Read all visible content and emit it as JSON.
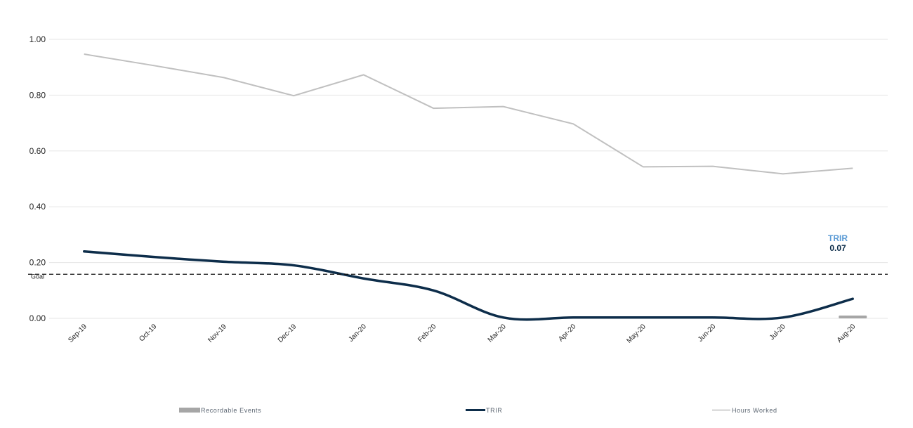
{
  "chart_data": {
    "type": "line",
    "categories": [
      "Sep-19",
      "Oct-19",
      "Nov-19",
      "Dec-19",
      "Jan-20",
      "Feb-20",
      "Mar-20",
      "Apr-20",
      "May-20",
      "Jun-20",
      "Jul-20",
      "Aug-20"
    ],
    "ylim": [
      0,
      1
    ],
    "y_ticks": [
      "0.00",
      "0.20",
      "0.40",
      "0.60",
      "0.80",
      "1.00"
    ],
    "grid": true,
    "goal": {
      "label": "Goal",
      "value": 0.158
    },
    "series": [
      {
        "name": "Recordable Events",
        "kind": "bar",
        "color": "#a6a6a6",
        "values": [
          0,
          0,
          0,
          0,
          0,
          0,
          0,
          0,
          0,
          0,
          0,
          0.01
        ]
      },
      {
        "name": "TRIR",
        "kind": "line",
        "color": "#0d2d4a",
        "values": [
          0.24,
          0.22,
          0.203,
          0.19,
          0.143,
          0.1,
          0.003,
          0.003,
          0.003,
          0.003,
          0.003,
          0.07
        ]
      },
      {
        "name": "Hours Worked",
        "kind": "line",
        "color": "#c0c0c0",
        "values": [
          0.947,
          0.906,
          0.863,
          0.798,
          0.873,
          0.753,
          0.759,
          0.697,
          0.543,
          0.545,
          0.518,
          0.538
        ]
      }
    ],
    "callout": {
      "name": "TRIR",
      "value": "0.07"
    },
    "legend_position": "bottom"
  }
}
